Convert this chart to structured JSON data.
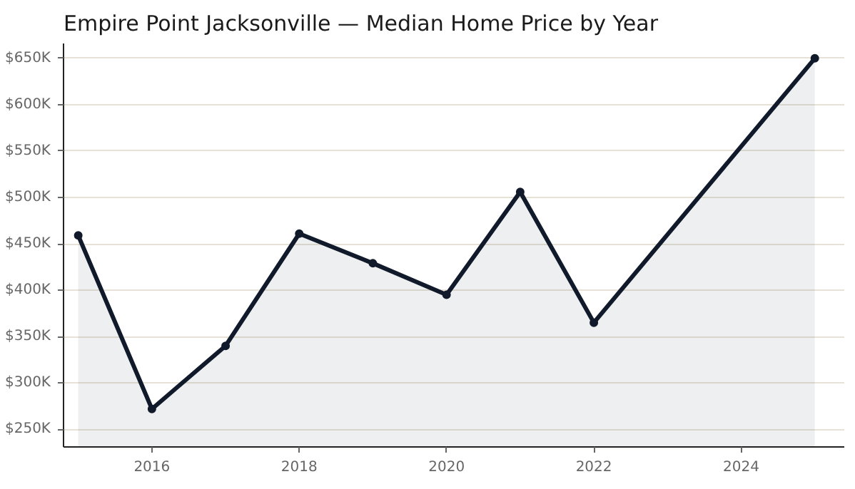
{
  "chart_data": {
    "type": "area",
    "title": "Empire Point Jacksonville — Median Home Price by Year",
    "x": [
      2015,
      2016,
      2017,
      2018,
      2019,
      2020,
      2021,
      2022,
      2025
    ],
    "series": [
      {
        "color": "#111a2b",
        "values": [
          459,
          272,
          340,
          461,
          429,
          395,
          506,
          365,
          650
        ]
      }
    ],
    "xlim": [
      2014.8,
      2025.4
    ],
    "xticks": [
      2016,
      2018,
      2020,
      2022,
      2024
    ],
    "ylim": [
      231,
      666
    ],
    "yticks": [
      {
        "value": 250,
        "label": "$250K"
      },
      {
        "value": 300,
        "label": "$300K"
      },
      {
        "value": 350,
        "label": "$350K"
      },
      {
        "value": 400,
        "label": "$400K"
      },
      {
        "value": 450,
        "label": "$450K"
      },
      {
        "value": 500,
        "label": "$500K"
      },
      {
        "value": 550,
        "label": "$550K"
      },
      {
        "value": 600,
        "label": "$600K"
      },
      {
        "value": 650,
        "label": "$650K"
      }
    ],
    "grid": "y",
    "marker": "circle",
    "line_style": "solid"
  }
}
